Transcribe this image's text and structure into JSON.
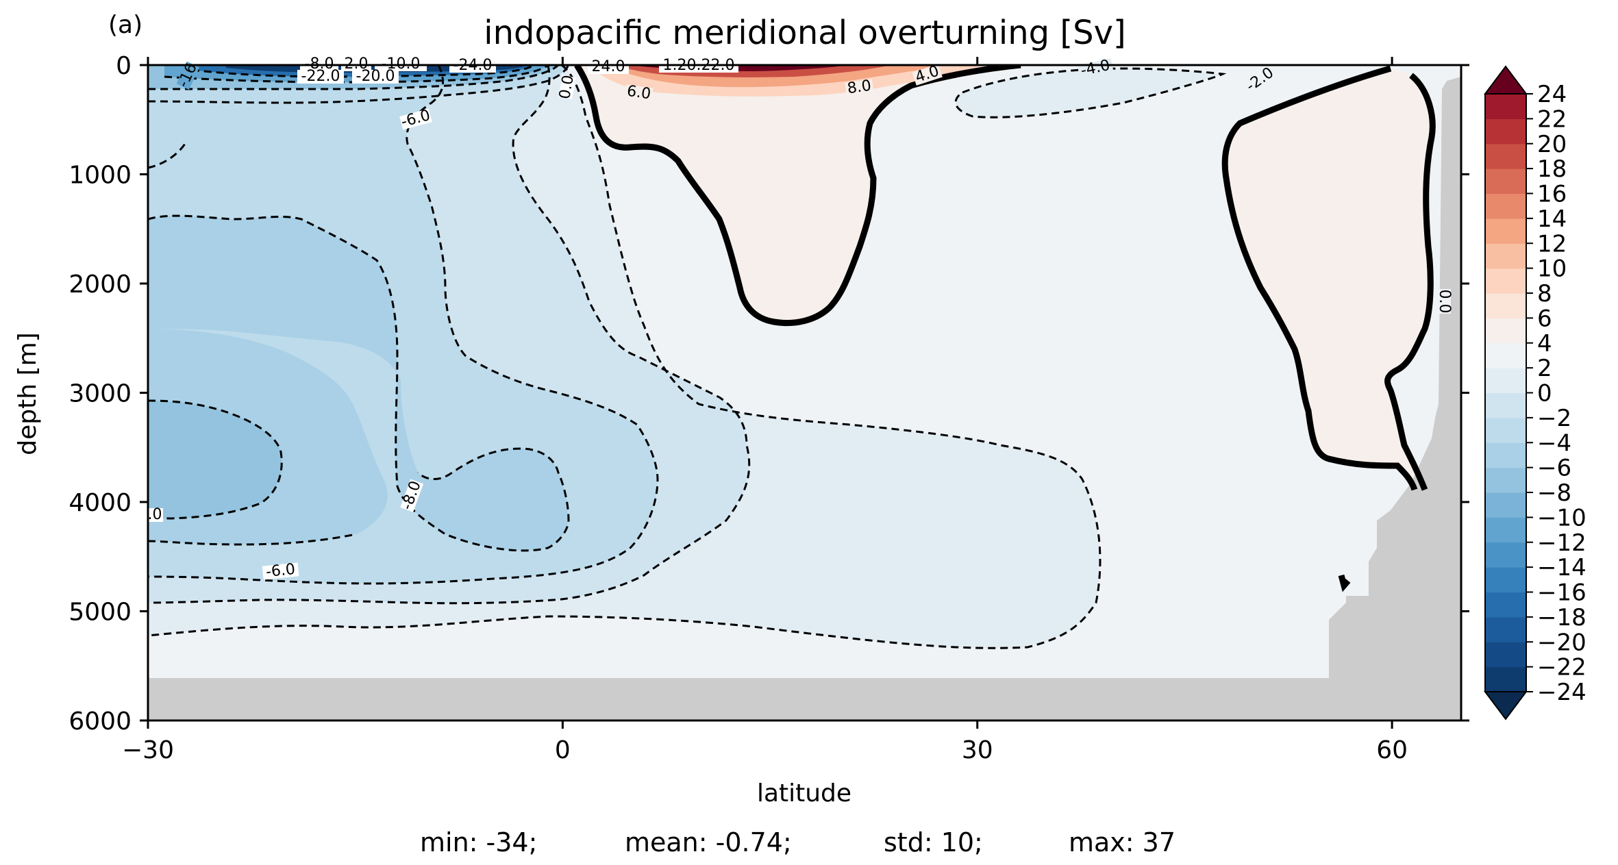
{
  "panel_label": "(a)",
  "title": "indopacific meridional overturning [Sv]",
  "stats": {
    "min": "min: -34;",
    "mean": "mean: -0.74;",
    "std": "std: 10;",
    "max": "max: 37"
  },
  "chart_data": {
    "type": "contour",
    "title": "indopacific meridional overturning [Sv]",
    "xlabel": "latitude",
    "ylabel": "depth [m]",
    "xlim": [
      -30,
      65
    ],
    "ylim": [
      6000,
      0
    ],
    "x_ticks": [
      -30,
      0,
      30,
      60
    ],
    "x_tick_labels": [
      "−30",
      "0",
      "30",
      "60"
    ],
    "y_ticks": [
      0,
      1000,
      2000,
      3000,
      4000,
      5000,
      6000
    ],
    "y_tick_labels": [
      "0",
      "1000",
      "2000",
      "3000",
      "4000",
      "5000",
      "6000"
    ],
    "colormap": "RdBu_r",
    "land_color": "#cccccc",
    "colorbar": {
      "levels": [
        -24,
        -22,
        -20,
        -18,
        -16,
        -14,
        -12,
        -10,
        -8,
        -6,
        -4,
        -2,
        0,
        2,
        4,
        6,
        8,
        10,
        12,
        14,
        16,
        18,
        20,
        22,
        24
      ],
      "tick_labels": [
        "−24",
        "−22",
        "−20",
        "−18",
        "−16",
        "−14",
        "−12",
        "−10",
        "−8",
        "−6",
        "−4",
        "−2",
        "0",
        "2",
        "4",
        "6",
        "8",
        "10",
        "12",
        "14",
        "16",
        "18",
        "20",
        "22",
        "24"
      ],
      "extend": "both",
      "colors": [
        "#0e3c6e",
        "#144b87",
        "#1c5c9c",
        "#266ead",
        "#3680bb",
        "#4a93c6",
        "#60a4cf",
        "#7ab3d7",
        "#93c3df",
        "#a9d0e6",
        "#bddbeb",
        "#d0e4f0",
        "#e2ecf3",
        "#eff3f6",
        "#f6efeb",
        "#fbe4d8",
        "#fcd4bf",
        "#f9bfa3",
        "#f4a582",
        "#e8896b",
        "#d96c56",
        "#c94f44",
        "#b63235",
        "#a01a2d",
        "#7f0a24",
        "#5c0620"
      ],
      "under_color": "#0a2a4f",
      "over_color": "#67001f"
    },
    "contour_labels": [
      "-8.0",
      "2.0",
      "-10.0",
      "-22.0",
      "-20.0",
      "-24.0",
      "24.0",
      "1.20.22.0",
      "6.0",
      "8.0",
      "4.0",
      "-4.0",
      "-2.0",
      "-16",
      "-6.0",
      "-8.0",
      "0.0",
      "0.0",
      ".0",
      "-6.0"
    ],
    "stats": {
      "min": -34,
      "mean": -0.74,
      "std": 10,
      "max": 37
    }
  }
}
